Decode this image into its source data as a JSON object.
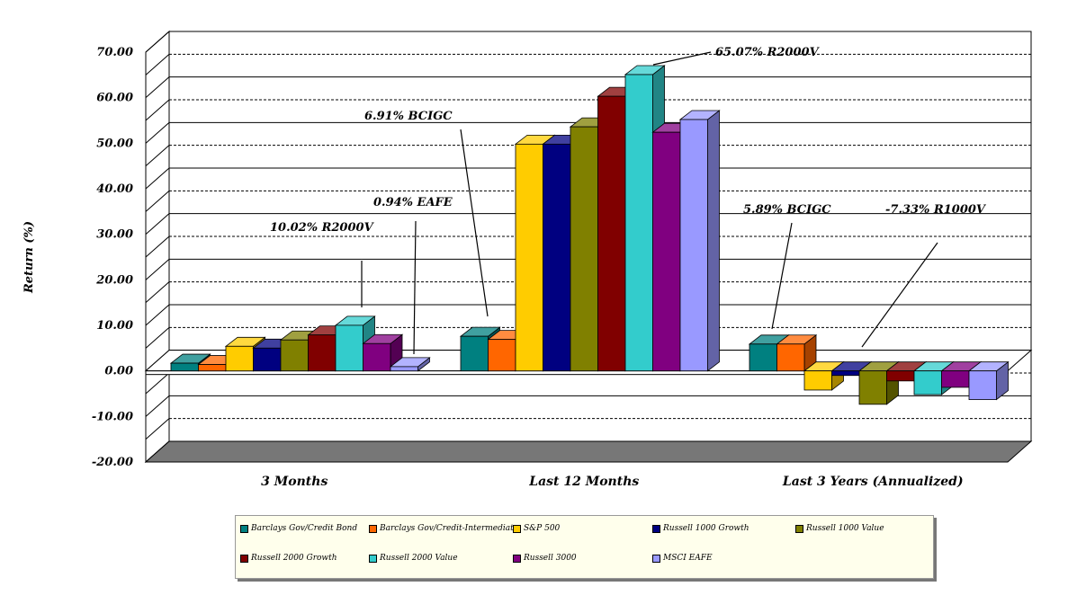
{
  "chart_data": {
    "type": "bar",
    "ylabel": "Return (%)",
    "ylim": [
      -20,
      70
    ],
    "yticks": [
      "70.00",
      "60.00",
      "50.00",
      "40.00",
      "30.00",
      "20.00",
      "10.00",
      "0.00",
      "-10.00",
      "-20.00"
    ],
    "categories": [
      "3 Months",
      "Last 12 Months",
      "Last 3 Years (Annualized)"
    ],
    "series": [
      {
        "name": "Barclays Gov/Credit  Bond",
        "color": "#008080",
        "values": [
          1.7,
          7.6,
          5.89
        ]
      },
      {
        "name": "Barclays Gov/Credit-Intermediate",
        "color": "#ff6600",
        "values": [
          1.4,
          6.91,
          5.9
        ]
      },
      {
        "name": "S&P 500",
        "color": "#ffcc00",
        "values": [
          5.4,
          49.8,
          -4.2
        ]
      },
      {
        "name": "Russell 1000 Growth",
        "color": "#000080",
        "values": [
          5.0,
          49.8,
          -1.0
        ]
      },
      {
        "name": "Russell 1000 Value",
        "color": "#808000",
        "values": [
          6.8,
          53.6,
          -7.33
        ]
      },
      {
        "name": "Russell 2000 Growth",
        "color": "#800000",
        "values": [
          7.9,
          60.3,
          -2.2
        ]
      },
      {
        "name": "Russell 2000 Value",
        "color": "#33cccc",
        "values": [
          10.02,
          65.07,
          -5.2
        ]
      },
      {
        "name": "Russell 3000",
        "color": "#800080",
        "values": [
          6.0,
          52.4,
          -3.6
        ]
      },
      {
        "name": "MSCI EAFE",
        "color": "#9999ff",
        "values": [
          0.94,
          55.2,
          -6.3
        ]
      }
    ],
    "annotations": [
      {
        "text": "10.02% R2000V"
      },
      {
        "text": "0.94% EAFE"
      },
      {
        "text": "6.91% BCIGC"
      },
      {
        "text": "65.07% R2000V"
      },
      {
        "text": "5.89% BCIGC"
      },
      {
        "text": "-7.33% R1000V"
      }
    ],
    "grid": true,
    "legend": "bottom"
  }
}
